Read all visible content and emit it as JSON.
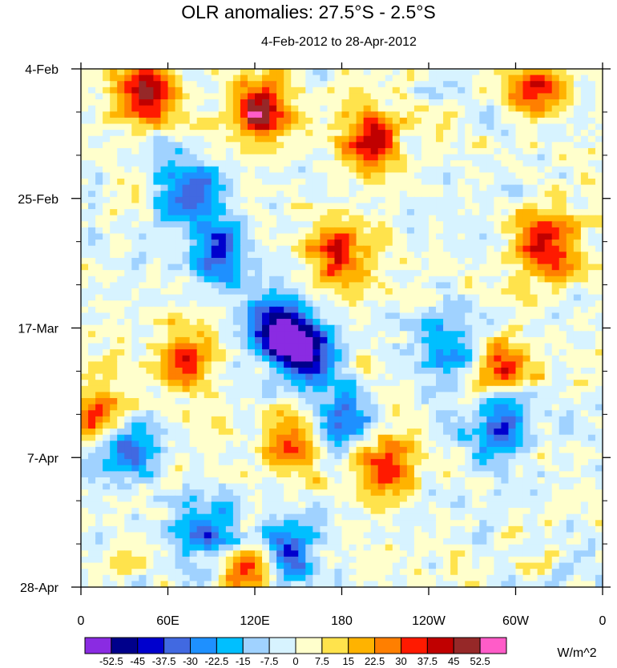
{
  "chart_data": {
    "type": "heatmap",
    "title": "OLR anomalies: 27.5°S - 2.5°S",
    "subtitle": "4-Feb-2012 to 28-Apr-2012",
    "xlabel": "",
    "ylabel": "",
    "x_ticks": [
      "0",
      "60E",
      "120E",
      "180",
      "120W",
      "60W",
      "0"
    ],
    "y_ticks": [
      "4-Feb",
      "25-Feb",
      "17-Mar",
      "7-Apr",
      "28-Apr"
    ],
    "x_range_deg_east": [
      0,
      360
    ],
    "y_range_days": [
      0,
      84
    ],
    "units": "W/m^2",
    "levels": [
      "-52.5",
      "-45",
      "-37.5",
      "-30",
      "-22.5",
      "-15",
      "-7.5",
      "0",
      "7.5",
      "15",
      "22.5",
      "30",
      "37.5",
      "45",
      "52.5"
    ],
    "colors": [
      "#8a2be2",
      "#00008b",
      "#0000cd",
      "#4169e1",
      "#1e90ff",
      "#00bfff",
      "#a0d2ff",
      "#d7f3ff",
      "#ffffcc",
      "#ffe34c",
      "#ffb300",
      "#ff7f00",
      "#ff1a00",
      "#c00000",
      "#962828",
      "#ff5cc8"
    ],
    "features": [
      {
        "name": "strong negative anomaly band",
        "lon": 135,
        "day": 42,
        "value": -55
      },
      {
        "name": "negative anomaly",
        "lon": 155,
        "day": 46,
        "value": -50
      },
      {
        "name": "negative anomaly",
        "lon": 95,
        "day": 30,
        "value": -42
      },
      {
        "name": "negative anomaly",
        "lon": 75,
        "day": 20,
        "value": -40
      },
      {
        "name": "negative anomaly",
        "lon": 180,
        "day": 57,
        "value": -38
      },
      {
        "name": "negative anomaly",
        "lon": 140,
        "day": 78,
        "value": -38
      },
      {
        "name": "negative anomaly",
        "lon": 30,
        "day": 62,
        "value": -35
      },
      {
        "name": "negative anomaly",
        "lon": 255,
        "day": 45,
        "value": -30
      },
      {
        "name": "negative anomaly",
        "lon": 290,
        "day": 58,
        "value": -32
      },
      {
        "name": "negative anomaly",
        "lon": 90,
        "day": 75,
        "value": -35
      },
      {
        "name": "positive anomaly",
        "lon": 200,
        "day": 12,
        "value": 40
      },
      {
        "name": "positive anomaly",
        "lon": 123,
        "day": 7,
        "value": 52
      },
      {
        "name": "positive anomaly",
        "lon": 45,
        "day": 4,
        "value": 45
      },
      {
        "name": "positive anomaly",
        "lon": 320,
        "day": 28,
        "value": 45
      },
      {
        "name": "positive anomaly",
        "lon": 315,
        "day": 3,
        "value": 38
      },
      {
        "name": "positive anomaly",
        "lon": 70,
        "day": 47,
        "value": 35
      },
      {
        "name": "positive anomaly",
        "lon": 178,
        "day": 30,
        "value": 35
      },
      {
        "name": "positive anomaly",
        "lon": 145,
        "day": 60,
        "value": 32
      },
      {
        "name": "positive anomaly",
        "lon": 210,
        "day": 64,
        "value": 35
      },
      {
        "name": "positive anomaly",
        "lon": 290,
        "day": 48,
        "value": 32
      },
      {
        "name": "positive anomaly",
        "lon": 15,
        "day": 56,
        "value": 28
      },
      {
        "name": "positive anomaly",
        "lon": 115,
        "day": 81,
        "value": 35
      }
    ]
  }
}
